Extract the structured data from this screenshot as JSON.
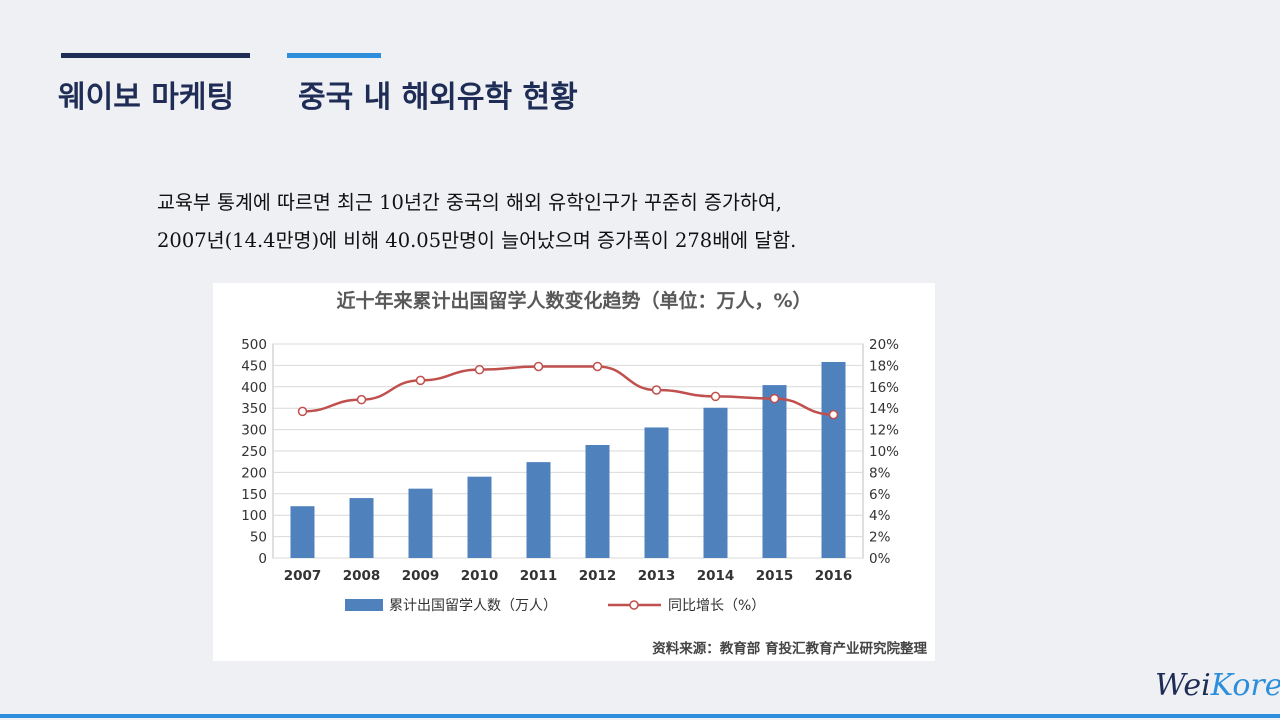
{
  "header": {
    "brand": "웨이보 마케팅",
    "topic": "중국 내 해외유학 현황"
  },
  "body": {
    "line1": "교육부 통계에 따르면 최근 10년간 중국의 해외 유학인구가 꾸준히 증가하여,",
    "line2": "2007년(14.4만명)에 비해 40.05만명이 늘어났으며 증가폭이 278배에 달함."
  },
  "chart_data": {
    "type": "bar",
    "title": "近十年来累计出国留学人数变化趋势（单位：万人，%）",
    "categories": [
      "2007",
      "2008",
      "2009",
      "2010",
      "2011",
      "2012",
      "2013",
      "2014",
      "2015",
      "2016"
    ],
    "series": [
      {
        "name": "累计出国留学人数（万人）",
        "type": "bar",
        "axis": "left",
        "values": [
          121,
          140,
          162,
          190,
          224,
          264,
          305,
          351,
          404,
          458
        ]
      },
      {
        "name": "同比增长（%）",
        "type": "line",
        "axis": "right",
        "values": [
          13.7,
          14.8,
          16.6,
          17.6,
          17.9,
          17.9,
          15.7,
          15.1,
          14.9,
          13.4
        ]
      }
    ],
    "ylim": [
      0,
      500
    ],
    "yticks": [
      "0",
      "50",
      "100",
      "150",
      "200",
      "250",
      "300",
      "350",
      "400",
      "450",
      "500"
    ],
    "y2lim": [
      0,
      20
    ],
    "y2ticks": [
      "0%",
      "2%",
      "4%",
      "6%",
      "8%",
      "10%",
      "12%",
      "14%",
      "16%",
      "18%",
      "20%"
    ],
    "legend_position": "bottom",
    "source": "资料来源：教育部  育投汇教育产业研究院整理",
    "colors": {
      "bar": "#4f81bd",
      "line": "#c0504d"
    }
  },
  "footer": {
    "logo_a": "Wei",
    "logo_b": "Korea"
  }
}
